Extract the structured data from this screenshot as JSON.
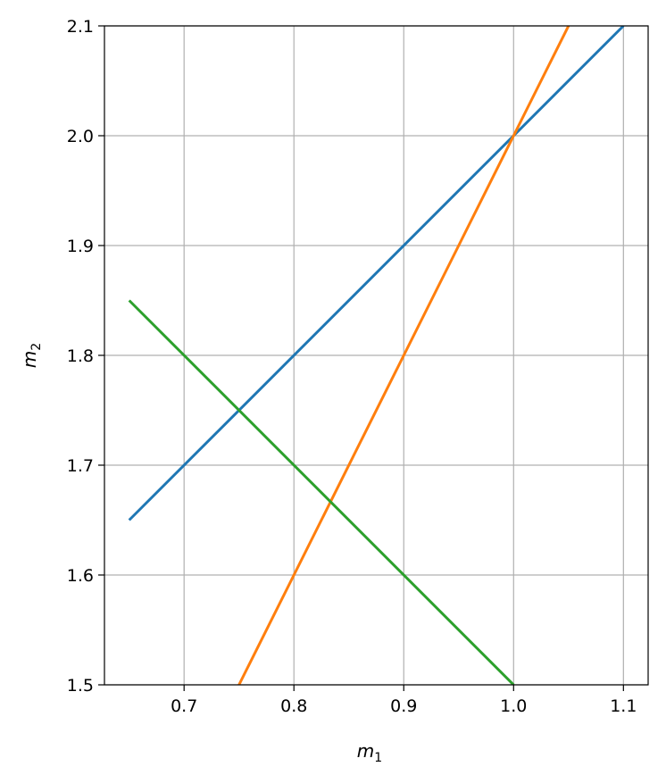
{
  "chart_data": {
    "type": "line",
    "title": "",
    "xlabel": "m",
    "xlabel_sub": "1",
    "ylabel": "m",
    "ylabel_sub": "2",
    "xlim": [
      0.6275,
      1.1225
    ],
    "ylim": [
      1.5,
      2.1
    ],
    "xticks": [
      "0.7",
      "0.8",
      "0.9",
      "1.0",
      "1.1"
    ],
    "yticks": [
      "1.5",
      "1.6",
      "1.7",
      "1.8",
      "1.9",
      "2.0",
      "2.1"
    ],
    "grid": true,
    "series": [
      {
        "color": "#1f77b4",
        "x": [
          0.65,
          1.1
        ],
        "y": [
          1.65,
          2.1
        ]
      },
      {
        "color": "#ff7f0e",
        "x": [
          0.65,
          1.1
        ],
        "y": [
          1.3,
          2.2
        ]
      },
      {
        "color": "#2ca02c",
        "x": [
          0.65,
          1.1
        ],
        "y": [
          1.85,
          1.4
        ]
      }
    ]
  }
}
